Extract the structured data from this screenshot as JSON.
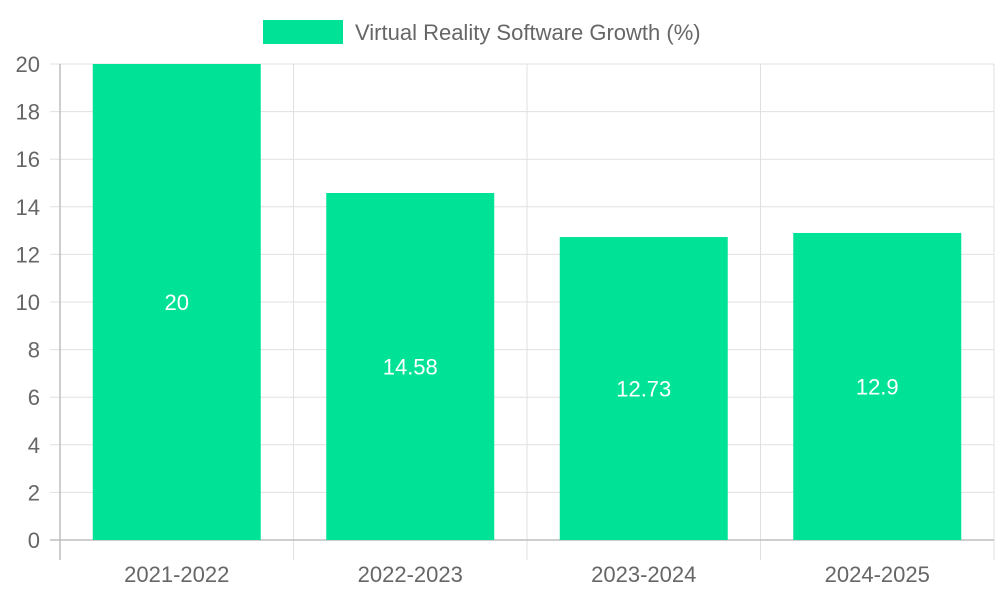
{
  "chart_data": {
    "type": "bar",
    "categories": [
      "2021-2022",
      "2022-2023",
      "2023-2024",
      "2024-2025"
    ],
    "series": [
      {
        "name": "Virtual Reality Software Growth (%)",
        "values": [
          20,
          14.58,
          12.73,
          12.9
        ],
        "color": "#00e396"
      }
    ],
    "y_ticks": [
      "0",
      "2",
      "4",
      "6",
      "8",
      "10",
      "12",
      "14",
      "16",
      "18",
      "20"
    ],
    "data_labels": [
      "20",
      "14.58",
      "12.73",
      "12.9"
    ],
    "ylim": [
      0,
      20
    ],
    "grid": true,
    "legend_position": "top"
  }
}
